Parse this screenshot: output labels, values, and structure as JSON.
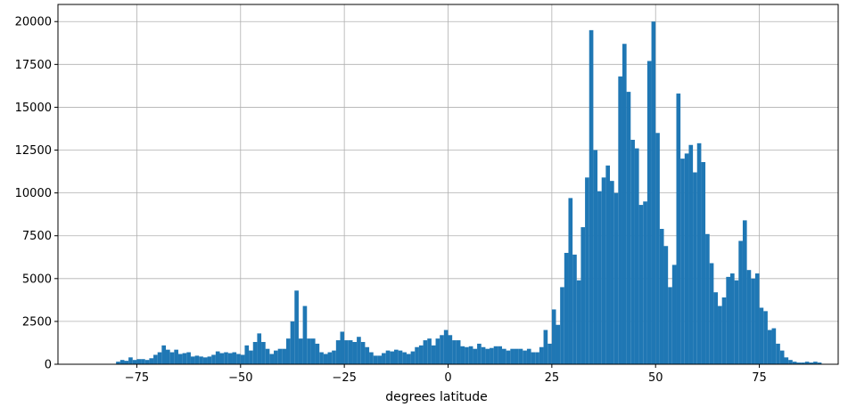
{
  "chart_data": {
    "type": "bar",
    "title": "",
    "xlabel": "degrees latitude",
    "ylabel": "",
    "xlim": [
      -94,
      94
    ],
    "ylim": [
      0,
      21000
    ],
    "bin_width": 1,
    "grid": true,
    "bar_color": "#1f77b4",
    "grid_color": "#b0b0b0",
    "x_ticks": [
      {
        "value": -75,
        "label": "−75"
      },
      {
        "value": -50,
        "label": "−50"
      },
      {
        "value": -25,
        "label": "−25"
      },
      {
        "value": 0,
        "label": "0"
      },
      {
        "value": 25,
        "label": "25"
      },
      {
        "value": 50,
        "label": "50"
      },
      {
        "value": 75,
        "label": "75"
      }
    ],
    "y_ticks": [
      {
        "value": 0,
        "label": "0"
      },
      {
        "value": 2500,
        "label": "2500"
      },
      {
        "value": 5000,
        "label": "5000"
      },
      {
        "value": 7500,
        "label": "7500"
      },
      {
        "value": 10000,
        "label": "10000"
      },
      {
        "value": 12500,
        "label": "12500"
      },
      {
        "value": 15000,
        "label": "15000"
      },
      {
        "value": 17500,
        "label": "17500"
      },
      {
        "value": 20000,
        "label": "20000"
      }
    ],
    "bins": [
      {
        "x": -80,
        "y": 150
      },
      {
        "x": -79,
        "y": 250
      },
      {
        "x": -78,
        "y": 200
      },
      {
        "x": -77,
        "y": 400
      },
      {
        "x": -76,
        "y": 250
      },
      {
        "x": -75,
        "y": 300
      },
      {
        "x": -74,
        "y": 300
      },
      {
        "x": -73,
        "y": 250
      },
      {
        "x": -72,
        "y": 350
      },
      {
        "x": -71,
        "y": 550
      },
      {
        "x": -70,
        "y": 700
      },
      {
        "x": -69,
        "y": 1100
      },
      {
        "x": -68,
        "y": 850
      },
      {
        "x": -67,
        "y": 700
      },
      {
        "x": -66,
        "y": 850
      },
      {
        "x": -65,
        "y": 600
      },
      {
        "x": -64,
        "y": 650
      },
      {
        "x": -63,
        "y": 700
      },
      {
        "x": -62,
        "y": 450
      },
      {
        "x": -61,
        "y": 500
      },
      {
        "x": -60,
        "y": 450
      },
      {
        "x": -59,
        "y": 400
      },
      {
        "x": -58,
        "y": 450
      },
      {
        "x": -57,
        "y": 550
      },
      {
        "x": -56,
        "y": 750
      },
      {
        "x": -55,
        "y": 650
      },
      {
        "x": -54,
        "y": 700
      },
      {
        "x": -53,
        "y": 650
      },
      {
        "x": -52,
        "y": 700
      },
      {
        "x": -51,
        "y": 600
      },
      {
        "x": -50,
        "y": 550
      },
      {
        "x": -49,
        "y": 1100
      },
      {
        "x": -48,
        "y": 800
      },
      {
        "x": -47,
        "y": 1300
      },
      {
        "x": -46,
        "y": 1800
      },
      {
        "x": -45,
        "y": 1300
      },
      {
        "x": -44,
        "y": 900
      },
      {
        "x": -43,
        "y": 600
      },
      {
        "x": -42,
        "y": 800
      },
      {
        "x": -41,
        "y": 900
      },
      {
        "x": -40,
        "y": 900
      },
      {
        "x": -39,
        "y": 1500
      },
      {
        "x": -38,
        "y": 2500
      },
      {
        "x": -37,
        "y": 4300
      },
      {
        "x": -36,
        "y": 1500
      },
      {
        "x": -35,
        "y": 3400
      },
      {
        "x": -34,
        "y": 1500
      },
      {
        "x": -33,
        "y": 1500
      },
      {
        "x": -32,
        "y": 1200
      },
      {
        "x": -31,
        "y": 700
      },
      {
        "x": -30,
        "y": 600
      },
      {
        "x": -29,
        "y": 700
      },
      {
        "x": -28,
        "y": 800
      },
      {
        "x": -27,
        "y": 1400
      },
      {
        "x": -26,
        "y": 1900
      },
      {
        "x": -25,
        "y": 1400
      },
      {
        "x": -24,
        "y": 1400
      },
      {
        "x": -23,
        "y": 1300
      },
      {
        "x": -22,
        "y": 1600
      },
      {
        "x": -21,
        "y": 1300
      },
      {
        "x": -20,
        "y": 1000
      },
      {
        "x": -19,
        "y": 700
      },
      {
        "x": -18,
        "y": 500
      },
      {
        "x": -17,
        "y": 500
      },
      {
        "x": -16,
        "y": 650
      },
      {
        "x": -15,
        "y": 800
      },
      {
        "x": -14,
        "y": 750
      },
      {
        "x": -13,
        "y": 850
      },
      {
        "x": -12,
        "y": 800
      },
      {
        "x": -11,
        "y": 700
      },
      {
        "x": -10,
        "y": 600
      },
      {
        "x": -9,
        "y": 750
      },
      {
        "x": -8,
        "y": 1000
      },
      {
        "x": -7,
        "y": 1100
      },
      {
        "x": -6,
        "y": 1400
      },
      {
        "x": -5,
        "y": 1500
      },
      {
        "x": -4,
        "y": 1100
      },
      {
        "x": -3,
        "y": 1500
      },
      {
        "x": -2,
        "y": 1700
      },
      {
        "x": -1,
        "y": 2000
      },
      {
        "x": 0,
        "y": 1700
      },
      {
        "x": 1,
        "y": 1400
      },
      {
        "x": 2,
        "y": 1400
      },
      {
        "x": 3,
        "y": 1050
      },
      {
        "x": 4,
        "y": 1000
      },
      {
        "x": 5,
        "y": 1050
      },
      {
        "x": 6,
        "y": 900
      },
      {
        "x": 7,
        "y": 1200
      },
      {
        "x": 8,
        "y": 1000
      },
      {
        "x": 9,
        "y": 900
      },
      {
        "x": 10,
        "y": 950
      },
      {
        "x": 11,
        "y": 1050
      },
      {
        "x": 12,
        "y": 1050
      },
      {
        "x": 13,
        "y": 900
      },
      {
        "x": 14,
        "y": 800
      },
      {
        "x": 15,
        "y": 900
      },
      {
        "x": 16,
        "y": 900
      },
      {
        "x": 17,
        "y": 900
      },
      {
        "x": 18,
        "y": 800
      },
      {
        "x": 19,
        "y": 900
      },
      {
        "x": 20,
        "y": 700
      },
      {
        "x": 21,
        "y": 700
      },
      {
        "x": 22,
        "y": 1000
      },
      {
        "x": 23,
        "y": 2000
      },
      {
        "x": 24,
        "y": 1200
      },
      {
        "x": 25,
        "y": 3200
      },
      {
        "x": 26,
        "y": 2300
      },
      {
        "x": 27,
        "y": 4500
      },
      {
        "x": 28,
        "y": 6500
      },
      {
        "x": 29,
        "y": 9700
      },
      {
        "x": 30,
        "y": 6400
      },
      {
        "x": 31,
        "y": 4900
      },
      {
        "x": 32,
        "y": 8000
      },
      {
        "x": 33,
        "y": 10900
      },
      {
        "x": 34,
        "y": 19500
      },
      {
        "x": 35,
        "y": 12500
      },
      {
        "x": 36,
        "y": 10100
      },
      {
        "x": 37,
        "y": 10900
      },
      {
        "x": 38,
        "y": 11600
      },
      {
        "x": 39,
        "y": 10700
      },
      {
        "x": 40,
        "y": 10000
      },
      {
        "x": 41,
        "y": 16800
      },
      {
        "x": 42,
        "y": 18700
      },
      {
        "x": 43,
        "y": 15900
      },
      {
        "x": 44,
        "y": 13100
      },
      {
        "x": 45,
        "y": 12600
      },
      {
        "x": 46,
        "y": 9300
      },
      {
        "x": 47,
        "y": 9500
      },
      {
        "x": 48,
        "y": 17700
      },
      {
        "x": 49,
        "y": 20000
      },
      {
        "x": 50,
        "y": 13500
      },
      {
        "x": 51,
        "y": 7900
      },
      {
        "x": 52,
        "y": 6900
      },
      {
        "x": 53,
        "y": 4500
      },
      {
        "x": 54,
        "y": 5800
      },
      {
        "x": 55,
        "y": 15800
      },
      {
        "x": 56,
        "y": 12000
      },
      {
        "x": 57,
        "y": 12300
      },
      {
        "x": 58,
        "y": 12800
      },
      {
        "x": 59,
        "y": 11200
      },
      {
        "x": 60,
        "y": 12900
      },
      {
        "x": 61,
        "y": 11800
      },
      {
        "x": 62,
        "y": 7600
      },
      {
        "x": 63,
        "y": 5900
      },
      {
        "x": 64,
        "y": 4200
      },
      {
        "x": 65,
        "y": 3400
      },
      {
        "x": 66,
        "y": 3900
      },
      {
        "x": 67,
        "y": 5100
      },
      {
        "x": 68,
        "y": 5300
      },
      {
        "x": 69,
        "y": 4900
      },
      {
        "x": 70,
        "y": 7200
      },
      {
        "x": 71,
        "y": 8400
      },
      {
        "x": 72,
        "y": 5500
      },
      {
        "x": 73,
        "y": 5000
      },
      {
        "x": 74,
        "y": 5300
      },
      {
        "x": 75,
        "y": 3300
      },
      {
        "x": 76,
        "y": 3100
      },
      {
        "x": 77,
        "y": 2000
      },
      {
        "x": 78,
        "y": 2100
      },
      {
        "x": 79,
        "y": 1200
      },
      {
        "x": 80,
        "y": 800
      },
      {
        "x": 81,
        "y": 400
      },
      {
        "x": 82,
        "y": 250
      },
      {
        "x": 83,
        "y": 150
      },
      {
        "x": 84,
        "y": 100
      },
      {
        "x": 85,
        "y": 100
      },
      {
        "x": 86,
        "y": 150
      },
      {
        "x": 87,
        "y": 100
      },
      {
        "x": 88,
        "y": 150
      },
      {
        "x": 89,
        "y": 100
      }
    ]
  }
}
